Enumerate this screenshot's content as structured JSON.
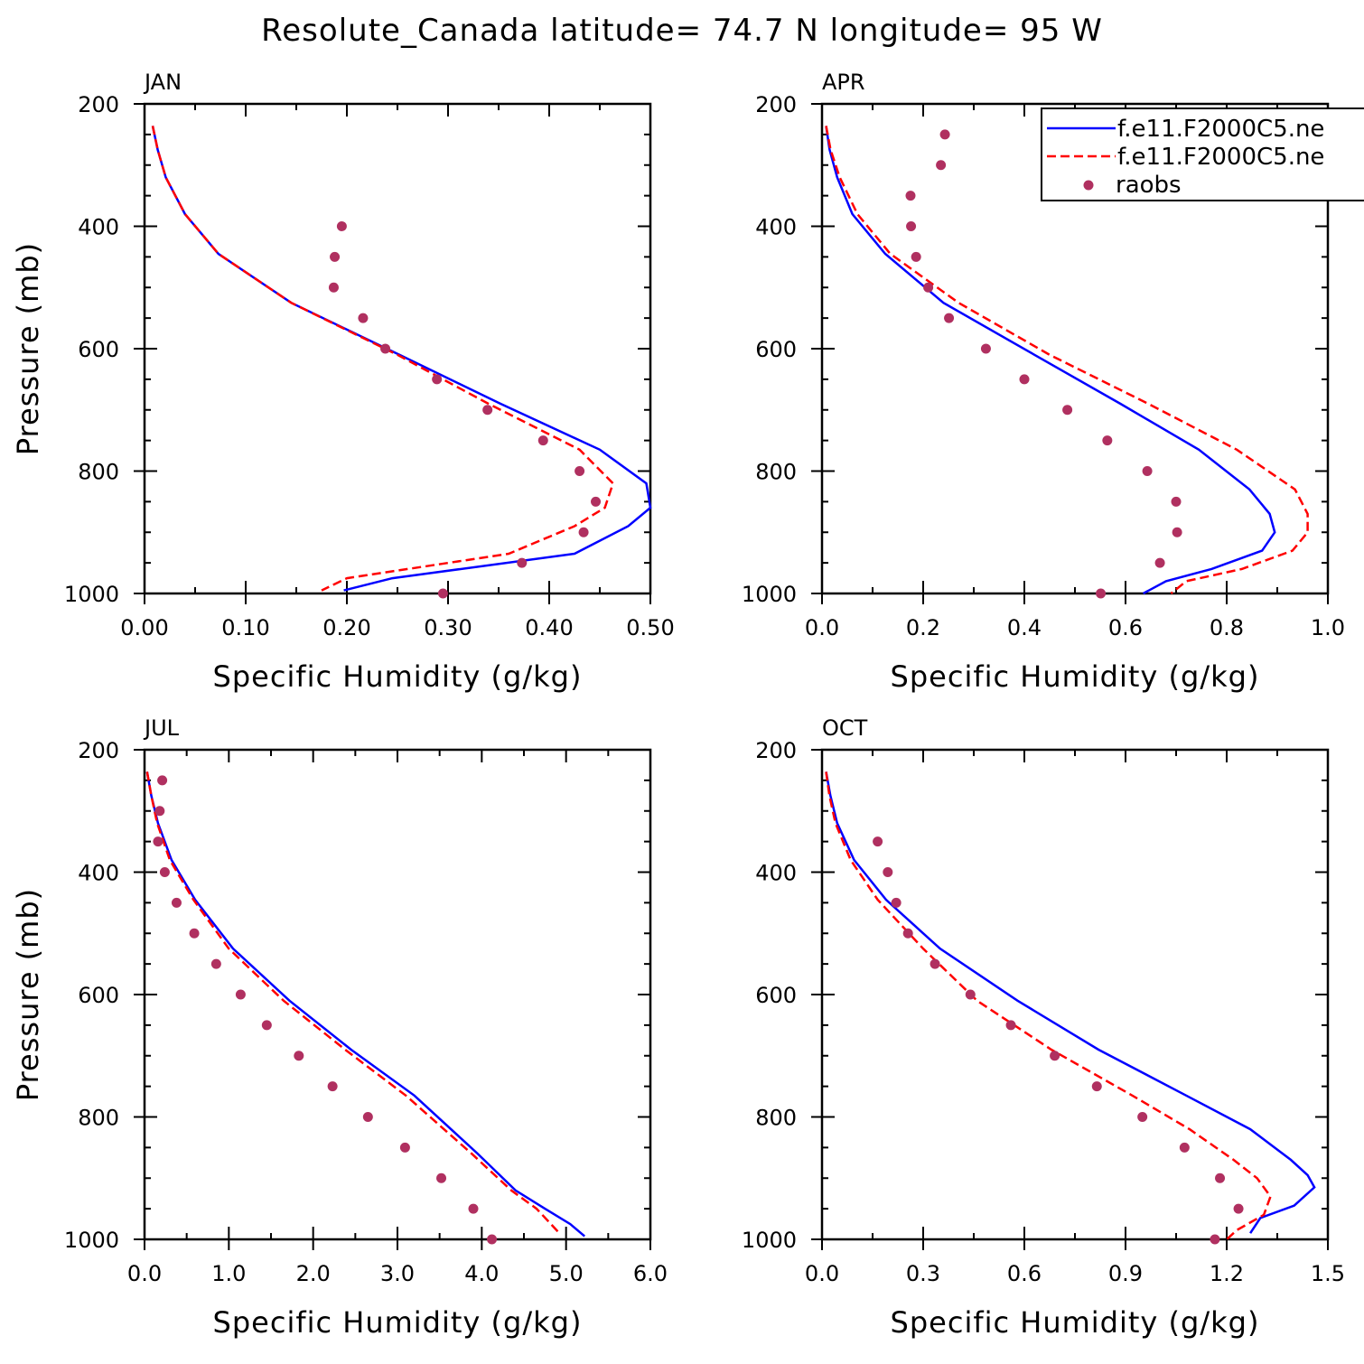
{
  "colors": {
    "model_a": "#0000ff",
    "model_b": "#ff0000",
    "raobs": "#b03060",
    "axis": "#000000"
  },
  "chart_data": {
    "type": "line",
    "title": "Resolute_Canada  latitude= 74.7 N longitude= 95 W",
    "xlabel": "Specific Humidity (g/kg)",
    "ylabel": "Pressure (mb)",
    "ylim": [
      1000,
      200
    ],
    "y_ticks": [
      200,
      400,
      600,
      800,
      1000
    ],
    "y_tick_labels": [
      "200",
      "400",
      "600",
      "800",
      "1000"
    ],
    "legend": {
      "placement": "top-right of APR panel",
      "entries": [
        {
          "label": "f.e11.F2000C5.ne",
          "style": "solid",
          "color": "#0000ff"
        },
        {
          "label": "f.e11.F2000C5.ne",
          "style": "dashed",
          "color": "#ff0000"
        },
        {
          "label": "raobs",
          "style": "marker",
          "color": "#b03060"
        }
      ]
    },
    "panels": [
      {
        "id": "jan",
        "label": "JAN",
        "xlim": [
          0,
          0.5
        ],
        "x_ticks": [
          0,
          0.1,
          0.2,
          0.3,
          0.4,
          0.5
        ],
        "x_tick_labels": [
          "0.00",
          "0.10",
          "0.20",
          "0.30",
          "0.40",
          "0.50"
        ],
        "series": [
          {
            "name": "f.e11.F2000C5.ne (solid)",
            "style": "solid",
            "pressure": [
              236,
              275,
              320,
              380,
              445,
              525,
              610,
              690,
              765,
              820,
              860,
              890,
              935,
              975,
              995
            ],
            "values": [
              0.008,
              0.013,
              0.021,
              0.04,
              0.073,
              0.145,
              0.252,
              0.352,
              0.45,
              0.496,
              0.5,
              0.478,
              0.425,
              0.245,
              0.197
            ]
          },
          {
            "name": "f.e11.F2000C5.ne (dashed)",
            "style": "dashed",
            "pressure": [
              236,
              275,
              320,
              380,
              445,
              525,
              610,
              690,
              765,
              820,
              860,
              890,
              935,
              975,
              995
            ],
            "values": [
              0.008,
              0.013,
              0.021,
              0.04,
              0.073,
              0.145,
              0.25,
              0.34,
              0.43,
              0.463,
              0.455,
              0.425,
              0.36,
              0.2,
              0.175
            ]
          }
        ],
        "raobs": {
          "pressure": [
            400,
            450,
            500,
            550,
            600,
            650,
            700,
            750,
            800,
            850,
            900,
            950,
            1000
          ],
          "values": [
            0.195,
            0.188,
            0.187,
            0.216,
            0.238,
            0.289,
            0.339,
            0.394,
            0.43,
            0.446,
            0.434,
            0.373,
            0.295
          ]
        }
      },
      {
        "id": "apr",
        "label": "APR",
        "xlim": [
          0,
          1.0
        ],
        "x_ticks": [
          0,
          0.2,
          0.4,
          0.6,
          0.8,
          1.0
        ],
        "x_tick_labels": [
          "0.0",
          "0.2",
          "0.4",
          "0.6",
          "0.8",
          "1.0"
        ],
        "series": [
          {
            "name": "f.e11.F2000C5.ne (solid)",
            "style": "solid",
            "pressure": [
              236,
              275,
              320,
              380,
              445,
              525,
              610,
              690,
              765,
              830,
              870,
              900,
              930,
              960,
              980,
              1000
            ],
            "values": [
              0.008,
              0.015,
              0.03,
              0.06,
              0.125,
              0.24,
              0.42,
              0.59,
              0.745,
              0.845,
              0.885,
              0.895,
              0.87,
              0.77,
              0.68,
              0.635
            ]
          },
          {
            "name": "f.e11.F2000C5.ne (dashed)",
            "style": "dashed",
            "pressure": [
              236,
              275,
              320,
              380,
              445,
              525,
              610,
              690,
              765,
              830,
              870,
              900,
              930,
              960,
              980,
              1000
            ],
            "values": [
              0.008,
              0.017,
              0.035,
              0.07,
              0.135,
              0.27,
              0.45,
              0.645,
              0.82,
              0.935,
              0.96,
              0.96,
              0.93,
              0.83,
              0.72,
              0.69
            ]
          }
        ],
        "raobs": {
          "pressure": [
            250,
            300,
            350,
            400,
            450,
            500,
            550,
            600,
            650,
            700,
            750,
            800,
            850,
            900,
            950,
            1000
          ],
          "values": [
            0.243,
            0.235,
            0.175,
            0.176,
            0.186,
            0.21,
            0.251,
            0.324,
            0.4,
            0.485,
            0.564,
            0.643,
            0.7,
            0.702,
            0.668,
            0.551
          ]
        }
      },
      {
        "id": "jul",
        "label": "JUL",
        "xlim": [
          0,
          6.0
        ],
        "x_ticks": [
          0,
          1,
          2,
          3,
          4,
          5,
          6
        ],
        "x_tick_labels": [
          "0.0",
          "1.0",
          "2.0",
          "3.0",
          "4.0",
          "5.0",
          "6.0"
        ],
        "series": [
          {
            "name": "f.e11.F2000C5.ne (solid)",
            "style": "solid",
            "pressure": [
              236,
              275,
              320,
              380,
              445,
              525,
              610,
              690,
              765,
              860,
              920,
              950,
              975,
              995
            ],
            "values": [
              0.03,
              0.08,
              0.16,
              0.32,
              0.6,
              1.05,
              1.72,
              2.45,
              3.2,
              3.95,
              4.4,
              4.75,
              5.05,
              5.22
            ]
          },
          {
            "name": "f.e11.F2000C5.ne (dashed)",
            "style": "dashed",
            "pressure": [
              236,
              275,
              320,
              380,
              445,
              525,
              610,
              690,
              765,
              860,
              920,
              950,
              975,
              990
            ],
            "values": [
              0.03,
              0.08,
              0.15,
              0.3,
              0.58,
              1.0,
              1.65,
              2.38,
              3.1,
              3.88,
              4.35,
              4.65,
              4.82,
              4.92
            ]
          }
        ],
        "raobs": {
          "pressure": [
            250,
            300,
            350,
            400,
            450,
            500,
            550,
            600,
            650,
            700,
            750,
            800,
            850,
            900,
            950,
            1000
          ],
          "values": [
            0.21,
            0.18,
            0.16,
            0.24,
            0.38,
            0.59,
            0.85,
            1.14,
            1.45,
            1.83,
            2.23,
            2.65,
            3.09,
            3.52,
            3.9,
            4.12
          ]
        }
      },
      {
        "id": "oct",
        "label": "OCT",
        "xlim": [
          0,
          1.5
        ],
        "x_ticks": [
          0,
          0.3,
          0.6,
          0.9,
          1.2,
          1.5
        ],
        "x_tick_labels": [
          "0.0",
          "0.3",
          "0.6",
          "0.9",
          "1.2",
          "1.5"
        ],
        "series": [
          {
            "name": "f.e11.F2000C5.ne (solid)",
            "style": "solid",
            "pressure": [
              236,
              275,
              320,
              380,
              445,
              525,
              610,
              690,
              765,
              820,
              870,
              895,
              915,
              945,
              965,
              990
            ],
            "values": [
              0.012,
              0.025,
              0.045,
              0.095,
              0.19,
              0.35,
              0.58,
              0.82,
              1.08,
              1.27,
              1.39,
              1.44,
              1.46,
              1.4,
              1.3,
              1.27
            ]
          },
          {
            "name": "f.e11.F2000C5.ne (dashed)",
            "style": "dashed",
            "pressure": [
              236,
              275,
              320,
              380,
              445,
              525,
              610,
              690,
              765,
              820,
              870,
              900,
              930,
              960,
              985,
              1000
            ],
            "values": [
              0.012,
              0.022,
              0.04,
              0.085,
              0.165,
              0.3,
              0.46,
              0.68,
              0.92,
              1.09,
              1.22,
              1.29,
              1.33,
              1.31,
              1.23,
              1.2
            ]
          }
        ],
        "raobs": {
          "pressure": [
            350,
            400,
            450,
            500,
            550,
            600,
            650,
            700,
            750,
            800,
            850,
            900,
            950,
            1000
          ],
          "values": [
            0.165,
            0.195,
            0.22,
            0.255,
            0.335,
            0.44,
            0.56,
            0.69,
            0.815,
            0.95,
            1.075,
            1.18,
            1.235,
            1.165
          ]
        }
      }
    ]
  }
}
